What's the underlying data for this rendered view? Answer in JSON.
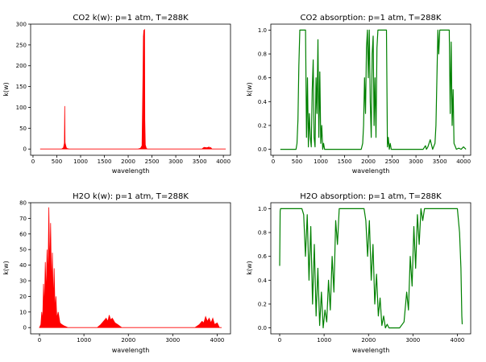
{
  "figure": {
    "panels": [
      {
        "id": "co2-kw",
        "title": "CO2 k(w): p=1 atm, T=288K",
        "xlabel": "wavelength",
        "ylabel": "k(w)",
        "color": "#ff0000",
        "fill": true,
        "xlim": [
          -50,
          4150
        ],
        "ylim": [
          -15,
          300
        ],
        "xticks": [
          0,
          500,
          1000,
          1500,
          2000,
          2500,
          3000,
          3500,
          4000
        ],
        "yticks": [
          0,
          50,
          100,
          150,
          200,
          250,
          300
        ],
        "ytick_labels": [
          "0",
          "50",
          "100",
          "150",
          "200",
          "250",
          "300"
        ]
      },
      {
        "id": "co2-abs",
        "title": "CO2 absorption: p=1 atm, T=288K",
        "xlabel": "wavelength",
        "ylabel": "k(w)",
        "color": "#008000",
        "fill": false,
        "xlim": [
          -50,
          4150
        ],
        "ylim": [
          -0.05,
          1.05
        ],
        "xticks": [
          0,
          500,
          1000,
          1500,
          2000,
          2500,
          3000,
          3500,
          4000
        ],
        "yticks": [
          0,
          0.2,
          0.4,
          0.6,
          0.8,
          1.0
        ],
        "ytick_labels": [
          "0.0",
          "0.2",
          "0.4",
          "0.6",
          "0.8",
          "1.0"
        ]
      },
      {
        "id": "h2o-kw",
        "title": "H2O k(w): p=1 atm, T=288K",
        "xlabel": "wavelength",
        "ylabel": "k(w)",
        "color": "#ff0000",
        "fill": true,
        "xlim": [
          -200,
          4300
        ],
        "ylim": [
          -4,
          80
        ],
        "xticks": [
          0,
          1000,
          2000,
          3000,
          4000
        ],
        "yticks": [
          0,
          10,
          20,
          30,
          40,
          50,
          60,
          70,
          80
        ],
        "ytick_labels": [
          "0",
          "10",
          "20",
          "30",
          "40",
          "50",
          "60",
          "70",
          "80"
        ]
      },
      {
        "id": "h2o-abs",
        "title": "H2O absorption: p=1 atm, T=288K",
        "xlabel": "wavelength",
        "ylabel": "k(w)",
        "color": "#008000",
        "fill": false,
        "xlim": [
          -200,
          4300
        ],
        "ylim": [
          -0.05,
          1.05
        ],
        "xticks": [
          0,
          1000,
          2000,
          3000,
          4000
        ],
        "yticks": [
          0,
          0.2,
          0.4,
          0.6,
          0.8,
          1.0
        ],
        "ytick_labels": [
          "0.0",
          "0.2",
          "0.4",
          "0.6",
          "0.8",
          "1.0"
        ]
      }
    ]
  },
  "chart_data": [
    {
      "type": "area",
      "title": "CO2 k(w): p=1 atm, T=288K",
      "xlabel": "wavelength",
      "ylabel": "k(w)",
      "xlim": [
        -50,
        4150
      ],
      "ylim": [
        -15,
        300
      ],
      "grid": false,
      "x": [
        150,
        600,
        640,
        660,
        667,
        673,
        680,
        700,
        720,
        760,
        2200,
        2260,
        2290,
        2310,
        2320,
        2330,
        2340,
        2345,
        2350,
        2360,
        2380,
        2400,
        3550,
        3580,
        3600,
        3650,
        3700,
        3715,
        3730,
        3760,
        4050
      ],
      "y": [
        0,
        0,
        3,
        14,
        103,
        16,
        12,
        3,
        1,
        0,
        0,
        2,
        8,
        180,
        270,
        286,
        260,
        288,
        70,
        10,
        2,
        0,
        0,
        3,
        4,
        3,
        5,
        2,
        4,
        0,
        0
      ]
    },
    {
      "type": "line",
      "title": "CO2 absorption: p=1 atm, T=288K",
      "xlabel": "wavelength",
      "ylabel": "k(w)",
      "xlim": [
        -50,
        4150
      ],
      "ylim": [
        -0.05,
        1.05
      ],
      "grid": false,
      "x": [
        150,
        480,
        500,
        520,
        540,
        560,
        580,
        600,
        680,
        700,
        720,
        740,
        760,
        780,
        800,
        820,
        840,
        860,
        880,
        900,
        920,
        940,
        960,
        980,
        1000,
        1020,
        1040,
        1060,
        1080,
        1100,
        1150,
        1850,
        1880,
        1900,
        1920,
        1940,
        1960,
        1980,
        2000,
        2020,
        2040,
        2060,
        2080,
        2100,
        2120,
        2140,
        2160,
        2180,
        2200,
        2220,
        2240,
        2260,
        2380,
        2400,
        2420,
        2440,
        2460,
        2480,
        3150,
        3200,
        3220,
        3250,
        3300,
        3350,
        3400,
        3420,
        3440,
        3460,
        3480,
        3500,
        3520,
        3700,
        3720,
        3740,
        3760,
        3780,
        3800,
        3820,
        3850,
        3900,
        3950,
        4000,
        4050
      ],
      "y": [
        0,
        0,
        0.05,
        0.25,
        0.7,
        1,
        1,
        1,
        1,
        0.1,
        0.6,
        0.02,
        0.3,
        0.1,
        0.02,
        0.5,
        0.75,
        0.1,
        0.02,
        0.6,
        0.3,
        0.92,
        0.1,
        0.65,
        0.05,
        0.2,
        0,
        0.05,
        0,
        0,
        0,
        0,
        0.05,
        0.2,
        0.6,
        0.3,
        0.85,
        1,
        0.6,
        1,
        0.4,
        0.1,
        0.8,
        0.95,
        0.2,
        0.6,
        0.1,
        0.85,
        1,
        1,
        1,
        1,
        1,
        0.02,
        0.1,
        0,
        0.05,
        0,
        0,
        0.03,
        0,
        0.02,
        0.08,
        0,
        0.05,
        0.2,
        0.6,
        1,
        0.8,
        1,
        1,
        1,
        0.3,
        0.9,
        0.2,
        0.5,
        0.05,
        0.03,
        0,
        0.01,
        0,
        0.02,
        0
      ],
      "legend": null
    },
    {
      "type": "area",
      "title": "H2O k(w): p=1 atm, T=288K",
      "xlabel": "wavelength",
      "ylabel": "k(w)",
      "xlim": [
        -200,
        4300
      ],
      "ylim": [
        -4,
        80
      ],
      "grid": false,
      "x": [
        0,
        30,
        50,
        70,
        90,
        110,
        130,
        150,
        170,
        190,
        210,
        230,
        250,
        270,
        290,
        310,
        330,
        350,
        370,
        390,
        420,
        460,
        500,
        560,
        640,
        1300,
        1380,
        1440,
        1500,
        1540,
        1570,
        1600,
        1640,
        1700,
        1760,
        1850,
        3500,
        3600,
        3660,
        3700,
        3740,
        3780,
        3820,
        3860,
        3900,
        3940,
        4000,
        4050,
        4100
      ],
      "y": [
        0,
        2,
        10,
        4,
        28,
        12,
        42,
        20,
        50,
        30,
        77,
        35,
        67,
        25,
        48,
        15,
        38,
        10,
        20,
        6,
        10,
        3,
        2,
        1,
        0,
        0,
        2,
        4,
        6,
        4,
        8,
        5,
        6,
        3,
        2,
        0,
        0,
        2,
        4,
        3,
        7,
        4,
        6,
        3,
        6,
        2,
        3,
        0,
        0
      ]
    },
    {
      "type": "line",
      "title": "H2O absorption: p=1 atm, T=288K",
      "xlabel": "wavelength",
      "ylabel": "k(w)",
      "xlim": [
        -200,
        4300
      ],
      "ylim": [
        -0.05,
        1.05
      ],
      "grid": false,
      "x": [
        0,
        10,
        20,
        500,
        540,
        580,
        620,
        660,
        700,
        740,
        780,
        820,
        860,
        900,
        940,
        980,
        1020,
        1060,
        1100,
        1140,
        1180,
        1220,
        1260,
        1300,
        1340,
        1380,
        1400,
        1900,
        1940,
        1980,
        2020,
        2060,
        2100,
        2140,
        2180,
        2220,
        2260,
        2300,
        2340,
        2380,
        2420,
        2460,
        2500,
        2550,
        2600,
        2700,
        2800,
        2860,
        2900,
        2940,
        2980,
        3020,
        3060,
        3100,
        3140,
        3180,
        3220,
        3260,
        3300,
        3400,
        3500,
        3600,
        3700,
        3800,
        3900,
        4000,
        4050,
        4080,
        4100,
        4110
      ],
      "y": [
        0.52,
        0.98,
        1,
        1,
        0.95,
        0.6,
        0.95,
        0.4,
        0.85,
        0.2,
        0.7,
        0.1,
        0.5,
        0.02,
        0.3,
        0,
        0.15,
        0.05,
        0.4,
        0.15,
        0.6,
        0.3,
        0.9,
        0.7,
        1,
        1,
        1,
        1,
        0.9,
        0.6,
        0.9,
        0.4,
        0.7,
        0.2,
        0.45,
        0.1,
        0.25,
        0.02,
        0.1,
        0,
        0.03,
        0,
        0,
        0,
        0,
        0,
        0.05,
        0.3,
        0.15,
        0.6,
        0.35,
        0.85,
        0.5,
        0.95,
        0.7,
        1,
        0.9,
        1,
        1,
        1,
        1,
        1,
        1,
        1,
        1,
        1,
        0.8,
        0.5,
        0.1,
        0.03
      ],
      "legend": null
    }
  ]
}
